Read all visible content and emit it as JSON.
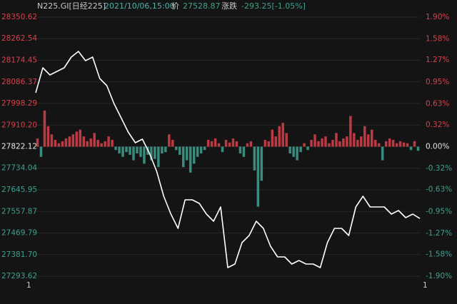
{
  "header": {
    "symbol": "N225.GI[日经225]",
    "time": "2021/10/06,15:00",
    "price_label": "价",
    "price": "27528.87",
    "change_label": "涨跌",
    "change": "-293.25[-1.05%]"
  },
  "chart_data": {
    "type": "line",
    "xlabels": [
      "1",
      "1"
    ],
    "ylim": [
      27293.62,
      28350.62
    ],
    "yticks": [
      28350.62,
      28262.54,
      28174.45,
      28086.37,
      27998.29,
      {
        "value": 27910.2,
        "label": "27910.20"
      },
      27822.12,
      27734.04,
      27645.95,
      27557.87,
      27469.79,
      {
        "value": 27381.7,
        "label": "27381.70"
      },
      27293.62
    ],
    "y2lim": [
      -1.9,
      1.9
    ],
    "y2ticks": [
      {
        "value": 1.9,
        "label": "1.90%"
      },
      {
        "value": 1.58,
        "label": "1.58%"
      },
      {
        "value": 1.27,
        "label": "1.27%"
      },
      {
        "value": 0.95,
        "label": "0.95%"
      },
      {
        "value": 0.63,
        "label": "0.63%"
      },
      {
        "value": 0.32,
        "label": "0.32%"
      },
      {
        "value": 0,
        "label": "0.00%"
      },
      {
        "value": -0.32,
        "label": "-0.32%"
      },
      {
        "value": -0.63,
        "label": "-0.63%"
      },
      {
        "value": -0.95,
        "label": "-0.95%"
      },
      {
        "value": -1.27,
        "label": "-1.27%"
      },
      {
        "value": -1.58,
        "label": "-1.58%"
      },
      {
        "value": -1.9,
        "label": "-1.90%"
      }
    ],
    "grid": true,
    "up_color": "#d9414c",
    "down_color": "#3fa08f",
    "flat_color": "#e6e6e6",
    "series": [
      {
        "type": "line",
        "color": "#ffffff",
        "values": [
          28042.0,
          28143.9,
          28114.8,
          28129.3,
          28143.9,
          28187.6,
          28210.9,
          28173.0,
          28187.6,
          28100.2,
          28071.1,
          27998.3,
          27940.1,
          27881.8,
          27838.2,
          27852.7,
          27794.5,
          27721.7,
          27619.8,
          27547.0,
          27488.8,
          27605.2,
          27605.2,
          27590.7,
          27547.0,
          27517.9,
          27576.1,
          27328.6,
          27343.2,
          27430.5,
          27459.6,
          27517.9,
          27488.8,
          27416.0,
          27372.3,
          27372.3,
          27343.2,
          27357.7,
          27343.2,
          27343.2,
          27328.6,
          27430.5,
          27488.8,
          27488.8,
          27459.6,
          27576.1,
          27619.8,
          27576.1,
          27576.1,
          27576.1,
          27547.0,
          27561.5,
          27532.4,
          27547.0,
          27528.87
        ]
      },
      {
        "type": "bar",
        "axis": "y2",
        "values": [
          0.12,
          -0.15,
          0.53,
          0.3,
          0.18,
          0.1,
          0.05,
          0.08,
          0.12,
          0.15,
          0.18,
          0.22,
          0.25,
          0.15,
          0.08,
          0.12,
          0.2,
          0.1,
          0.05,
          0.08,
          0.15,
          0.1,
          -0.05,
          -0.1,
          -0.15,
          -0.08,
          -0.12,
          -0.2,
          -0.1,
          -0.15,
          -0.25,
          -0.12,
          -0.2,
          -0.18,
          -0.3,
          -0.1,
          -0.08,
          0.18,
          0.1,
          -0.05,
          -0.12,
          -0.3,
          -0.2,
          -0.38,
          -0.25,
          -0.15,
          -0.1,
          -0.05,
          0.1,
          0.08,
          0.12,
          0.05,
          -0.08,
          0.1,
          0.06,
          0.12,
          0.08,
          -0.1,
          -0.15,
          0.05,
          0.08,
          -0.35,
          -0.88,
          -0.5,
          0.1,
          0.08,
          0.25,
          0.15,
          0.3,
          0.35,
          0.2,
          -0.1,
          -0.15,
          -0.2,
          -0.08,
          0.05,
          -0.05,
          0.1,
          0.18,
          0.08,
          0.12,
          0.15,
          0.05,
          0.1,
          0.2,
          0.08,
          0.12,
          0.15,
          0.45,
          0.2,
          0.1,
          0.15,
          0.3,
          0.18,
          0.25,
          0.1,
          0.05,
          -0.2,
          0.08,
          0.12,
          0.1,
          0.05,
          0.08,
          0.06,
          0.05,
          -0.05,
          0.08,
          -0.06
        ]
      }
    ]
  }
}
